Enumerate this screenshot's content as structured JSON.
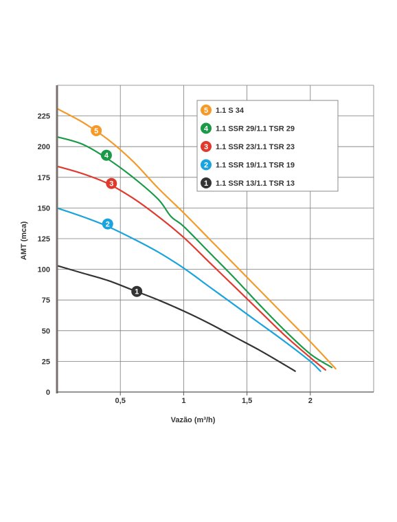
{
  "chart_data": {
    "type": "line",
    "title": "",
    "xlabel": "Vazão (m³/h)",
    "ylabel": "AMT (mca)",
    "xlim": [
      0,
      2.5
    ],
    "ylim": [
      0,
      250
    ],
    "x_ticks": [
      {
        "v": 0.5,
        "label": "0,5"
      },
      {
        "v": 1,
        "label": "1"
      },
      {
        "v": 1.5,
        "label": "1,5"
      },
      {
        "v": 2,
        "label": "2"
      }
    ],
    "y_ticks": [
      {
        "v": 0,
        "label": "0"
      },
      {
        "v": 25,
        "label": "25"
      },
      {
        "v": 50,
        "label": "50"
      },
      {
        "v": 75,
        "label": "75"
      },
      {
        "v": 100,
        "label": "100"
      },
      {
        "v": 125,
        "label": "125"
      },
      {
        "v": 150,
        "label": "150"
      },
      {
        "v": 175,
        "label": "175"
      },
      {
        "v": 200,
        "label": "200"
      },
      {
        "v": 225,
        "label": "225"
      }
    ],
    "grid": true,
    "legend_position": "top-right",
    "series": [
      {
        "id": "5",
        "name": "1.1 S 34",
        "color": "#f39a2b",
        "x": [
          0,
          0.2,
          0.4,
          0.6,
          0.8,
          1.0,
          1.2,
          1.4,
          1.6,
          1.8,
          2.0,
          2.2
        ],
        "y": [
          231,
          220,
          206,
          188,
          166,
          146,
          125,
          104,
          83,
          62,
          41,
          19
        ],
        "label_at": [
          0.31,
          213
        ]
      },
      {
        "id": "4",
        "name": "1.1 SSR 29/1.1 TSR 29",
        "color": "#1a9a46",
        "x": [
          0,
          0.2,
          0.4,
          0.6,
          0.8,
          0.9,
          1.0,
          1.2,
          1.4,
          1.6,
          1.8,
          2.0,
          2.17
        ],
        "y": [
          208,
          202,
          190,
          175,
          157,
          143,
          135,
          114,
          93,
          71,
          50,
          31,
          20
        ],
        "label_at": [
          0.39,
          193
        ]
      },
      {
        "id": "3",
        "name": "1.1 SSR 23/1.1 TSR 23",
        "color": "#e03a2f",
        "x": [
          0,
          0.2,
          0.4,
          0.6,
          0.8,
          1.0,
          1.2,
          1.4,
          1.6,
          1.8,
          2.0,
          2.12
        ],
        "y": [
          184,
          178,
          170,
          158,
          143,
          126,
          106,
          86,
          66,
          46,
          28,
          18
        ],
        "label_at": [
          0.43,
          170
        ]
      },
      {
        "id": "2",
        "name": "1.1 SSR 19/1.1 TSR 19",
        "color": "#1aa3dd",
        "x": [
          0,
          0.2,
          0.4,
          0.6,
          0.8,
          1.0,
          1.2,
          1.4,
          1.6,
          1.8,
          2.0,
          2.08
        ],
        "y": [
          150,
          143,
          135,
          125,
          114,
          101,
          86,
          71,
          56,
          41,
          25,
          17
        ],
        "label_at": [
          0.4,
          137
        ]
      },
      {
        "id": "1",
        "name": "1.1 SSR 13/1.1 TSR 13",
        "color": "#333333",
        "x": [
          0,
          0.2,
          0.4,
          0.6,
          0.8,
          1.0,
          1.2,
          1.4,
          1.6,
          1.8,
          1.88
        ],
        "y": [
          103,
          97,
          91,
          83,
          75,
          66,
          56,
          45,
          34,
          22,
          17
        ],
        "label_at": [
          0.63,
          82
        ]
      }
    ],
    "legend_order": [
      "5",
      "4",
      "3",
      "2",
      "1"
    ]
  }
}
